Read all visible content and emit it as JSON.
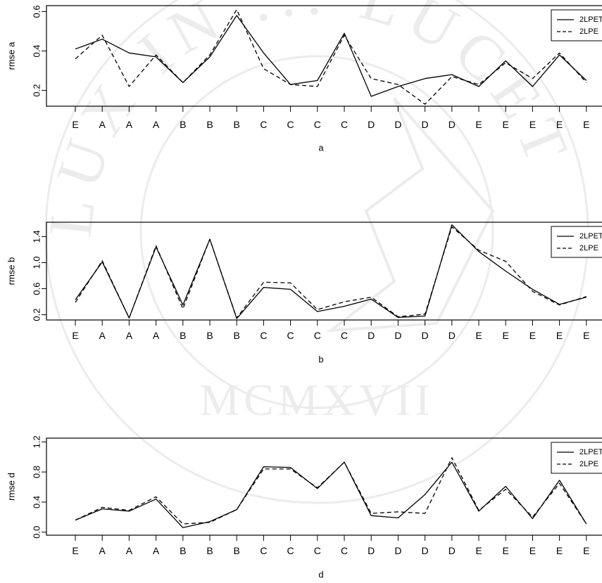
{
  "watermark": {
    "name": "university-seal-watermark",
    "arc_text": "LUX IN ... LUCET",
    "year": "MCMXVII",
    "color": "#ececec"
  },
  "colors": {
    "line": "#000000",
    "background": "#ffffff"
  },
  "chart_data": [
    {
      "type": "line",
      "title": "",
      "xlabel": "a",
      "ylabel": "rmse a",
      "categories": [
        "E",
        "A",
        "A",
        "A",
        "B",
        "B",
        "B",
        "C",
        "C",
        "C",
        "C",
        "D",
        "D",
        "D",
        "D",
        "E",
        "E",
        "E",
        "E",
        "E"
      ],
      "ylim": [
        0.12,
        0.63
      ],
      "yticks": [
        0.2,
        0.4,
        0.6
      ],
      "ytick_labels": [
        "0.2",
        "0.4",
        "0.6"
      ],
      "legend": {
        "position": "top-right"
      },
      "series": [
        {
          "name": "2LPET",
          "dash": "solid",
          "values": [
            0.41,
            0.46,
            0.39,
            0.37,
            0.24,
            0.37,
            0.58,
            0.39,
            0.23,
            0.25,
            0.49,
            0.17,
            0.22,
            0.26,
            0.28,
            0.22,
            0.35,
            0.22,
            0.38,
            0.25
          ]
        },
        {
          "name": "2LPE",
          "dash": "dashed",
          "values": [
            0.36,
            0.48,
            0.22,
            0.38,
            0.24,
            0.38,
            0.61,
            0.31,
            0.23,
            0.22,
            0.48,
            0.26,
            0.23,
            0.13,
            0.27,
            0.23,
            0.34,
            0.26,
            0.39,
            0.24
          ]
        }
      ]
    },
    {
      "type": "line",
      "title": "",
      "xlabel": "b",
      "ylabel": "rmse b",
      "categories": [
        "E",
        "A",
        "A",
        "A",
        "B",
        "B",
        "B",
        "C",
        "C",
        "C",
        "C",
        "D",
        "D",
        "D",
        "D",
        "E",
        "E",
        "E",
        "E",
        "E"
      ],
      "ylim": [
        0.12,
        1.62
      ],
      "yticks": [
        0.2,
        0.6,
        1.0,
        1.4
      ],
      "ytick_labels": [
        "0.2",
        "0.6",
        "1.0",
        "1.4"
      ],
      "legend": {
        "position": "top-right"
      },
      "series": [
        {
          "name": "2LPET",
          "dash": "solid",
          "values": [
            0.43,
            1.01,
            0.15,
            1.24,
            0.35,
            1.36,
            0.14,
            0.62,
            0.59,
            0.25,
            0.33,
            0.44,
            0.16,
            0.18,
            1.58,
            1.17,
            0.87,
            0.59,
            0.36,
            0.47
          ]
        },
        {
          "name": "2LPE",
          "dash": "dashed",
          "values": [
            0.39,
            1.03,
            0.15,
            1.26,
            0.29,
            1.36,
            0.15,
            0.7,
            0.69,
            0.28,
            0.4,
            0.47,
            0.17,
            0.21,
            1.55,
            1.19,
            1.02,
            0.56,
            0.35,
            0.48
          ]
        }
      ]
    },
    {
      "type": "line",
      "title": "",
      "xlabel": "d",
      "ylabel": "rmse d",
      "categories": [
        "E",
        "A",
        "A",
        "A",
        "B",
        "B",
        "B",
        "C",
        "C",
        "C",
        "C",
        "D",
        "D",
        "D",
        "D",
        "E",
        "E",
        "E",
        "E",
        "E"
      ],
      "ylim": [
        -0.04,
        1.25
      ],
      "yticks": [
        0.0,
        0.4,
        0.8,
        1.2
      ],
      "ytick_labels": [
        "0.0",
        "0.4",
        "0.8",
        "1.2"
      ],
      "legend": {
        "position": "top-right"
      },
      "series": [
        {
          "name": "2LPET",
          "dash": "solid",
          "values": [
            0.16,
            0.31,
            0.28,
            0.44,
            0.06,
            0.14,
            0.3,
            0.87,
            0.86,
            0.58,
            0.93,
            0.22,
            0.19,
            0.5,
            0.93,
            0.28,
            0.61,
            0.18,
            0.69,
            0.11
          ]
        },
        {
          "name": "2LPE",
          "dash": "dashed",
          "values": [
            0.16,
            0.33,
            0.29,
            0.47,
            0.11,
            0.13,
            0.3,
            0.84,
            0.84,
            0.59,
            0.93,
            0.25,
            0.27,
            0.25,
            0.99,
            0.29,
            0.57,
            0.2,
            0.65,
            0.11
          ]
        }
      ]
    }
  ]
}
